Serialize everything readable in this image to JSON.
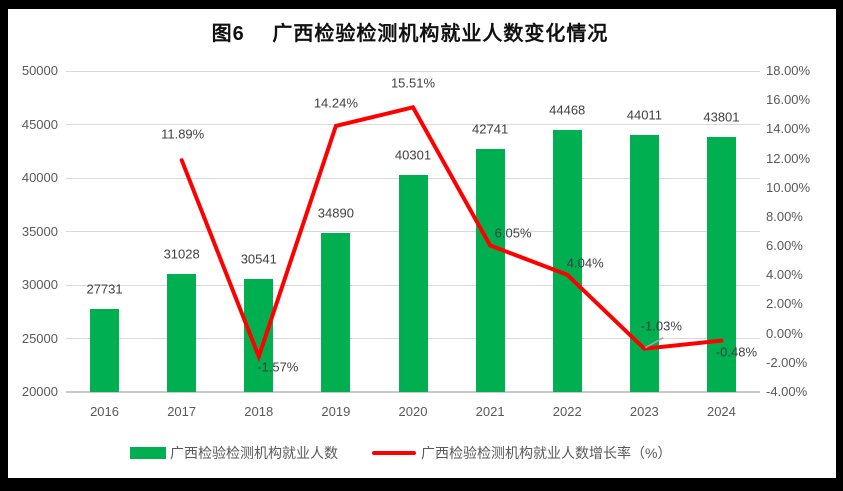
{
  "chart_data": {
    "type": "combo_bar_line",
    "title": "图6　 广西检验检测机构就业人数变化情况",
    "categories": [
      "2016",
      "2017",
      "2018",
      "2019",
      "2020",
      "2021",
      "2022",
      "2023",
      "2024"
    ],
    "series": [
      {
        "name": "广西检验检测机构就业人数",
        "type": "bar",
        "axis": "left",
        "color": "#00B050",
        "values": [
          27731,
          31028,
          30541,
          34890,
          40301,
          42741,
          44468,
          44011,
          43801
        ],
        "data_labels": [
          "27731",
          "31028",
          "30541",
          "34890",
          "40301",
          "42741",
          "44468",
          "44011",
          "43801"
        ]
      },
      {
        "name": "广西检验检测机构就业人数增长率（%）",
        "type": "line",
        "axis": "right",
        "color": "#FF0000",
        "values": [
          null,
          11.89,
          -1.57,
          14.24,
          15.51,
          6.05,
          4.04,
          -1.03,
          -0.48
        ],
        "data_labels": [
          "",
          "11.89%",
          "-1.57%",
          "14.24%",
          "15.51%",
          "6.05%",
          "4.04%",
          "-1.03%",
          "-0.48%"
        ]
      }
    ],
    "left_axis": {
      "min": 20000,
      "max": 50000,
      "step": 5000,
      "tick_labels": [
        "50000",
        "45000",
        "40000",
        "35000",
        "30000",
        "25000",
        "20000"
      ]
    },
    "right_axis": {
      "min": -4,
      "max": 18,
      "step": 2,
      "tick_labels": [
        "18.00%",
        "16.00%",
        "14.00%",
        "12.00%",
        "10.00%",
        "8.00%",
        "6.00%",
        "4.00%",
        "2.00%",
        "0.00%",
        "-2.00%",
        "-4.00%"
      ]
    },
    "grid": true,
    "legend_position": "bottom",
    "colors": {
      "bar": "#00B050",
      "line": "#FF0000",
      "grid": "#d9d9d9",
      "axis_line": "#c9c9c9",
      "tick_text": "#595959",
      "data_label_text": "#404040",
      "leader_line": "#a6a6a6"
    },
    "line_label_offsets": [
      null,
      [
        1,
        -26
      ],
      [
        19,
        10
      ],
      [
        0,
        -23
      ],
      [
        0,
        -24
      ],
      [
        23,
        -12
      ],
      [
        18,
        -12
      ],
      [
        17,
        -23
      ],
      [
        15,
        11
      ]
    ],
    "leader_line_point_index": 7
  }
}
